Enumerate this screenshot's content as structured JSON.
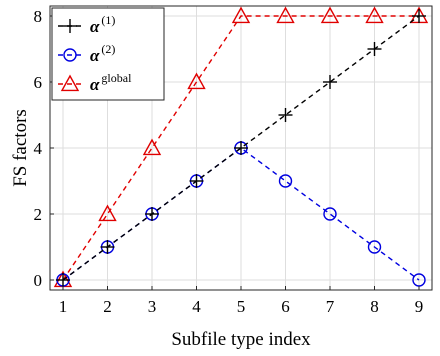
{
  "chart_data": {
    "type": "line",
    "xlabel": "Subfile type index",
    "ylabel": "FS factors",
    "x": [
      1,
      2,
      3,
      4,
      5,
      6,
      7,
      8,
      9
    ],
    "xlim": [
      1,
      9
    ],
    "ylim": [
      0,
      8
    ],
    "xticks": [
      "1",
      "2",
      "3",
      "4",
      "5",
      "6",
      "7",
      "8",
      "9"
    ],
    "yticks": [
      "0",
      "2",
      "4",
      "6",
      "8"
    ],
    "grid": true,
    "legend_position": "top-left",
    "series": [
      {
        "name_base": "α",
        "name_sup": "(1)",
        "color": "#000000",
        "marker": "plus",
        "dashed": true,
        "values": [
          0,
          1,
          2,
          3,
          4,
          5,
          6,
          7,
          8
        ]
      },
      {
        "name_base": "α",
        "name_sup": "(2)",
        "color": "#0000e0",
        "marker": "circle",
        "dashed": true,
        "values": [
          0,
          1,
          2,
          3,
          4,
          3,
          2,
          1,
          0
        ]
      },
      {
        "name_base": "α",
        "name_sup": "global",
        "color": "#e00000",
        "marker": "triangle",
        "dashed": true,
        "values": [
          0,
          2,
          4,
          6,
          8,
          8,
          8,
          8,
          8
        ]
      }
    ]
  }
}
